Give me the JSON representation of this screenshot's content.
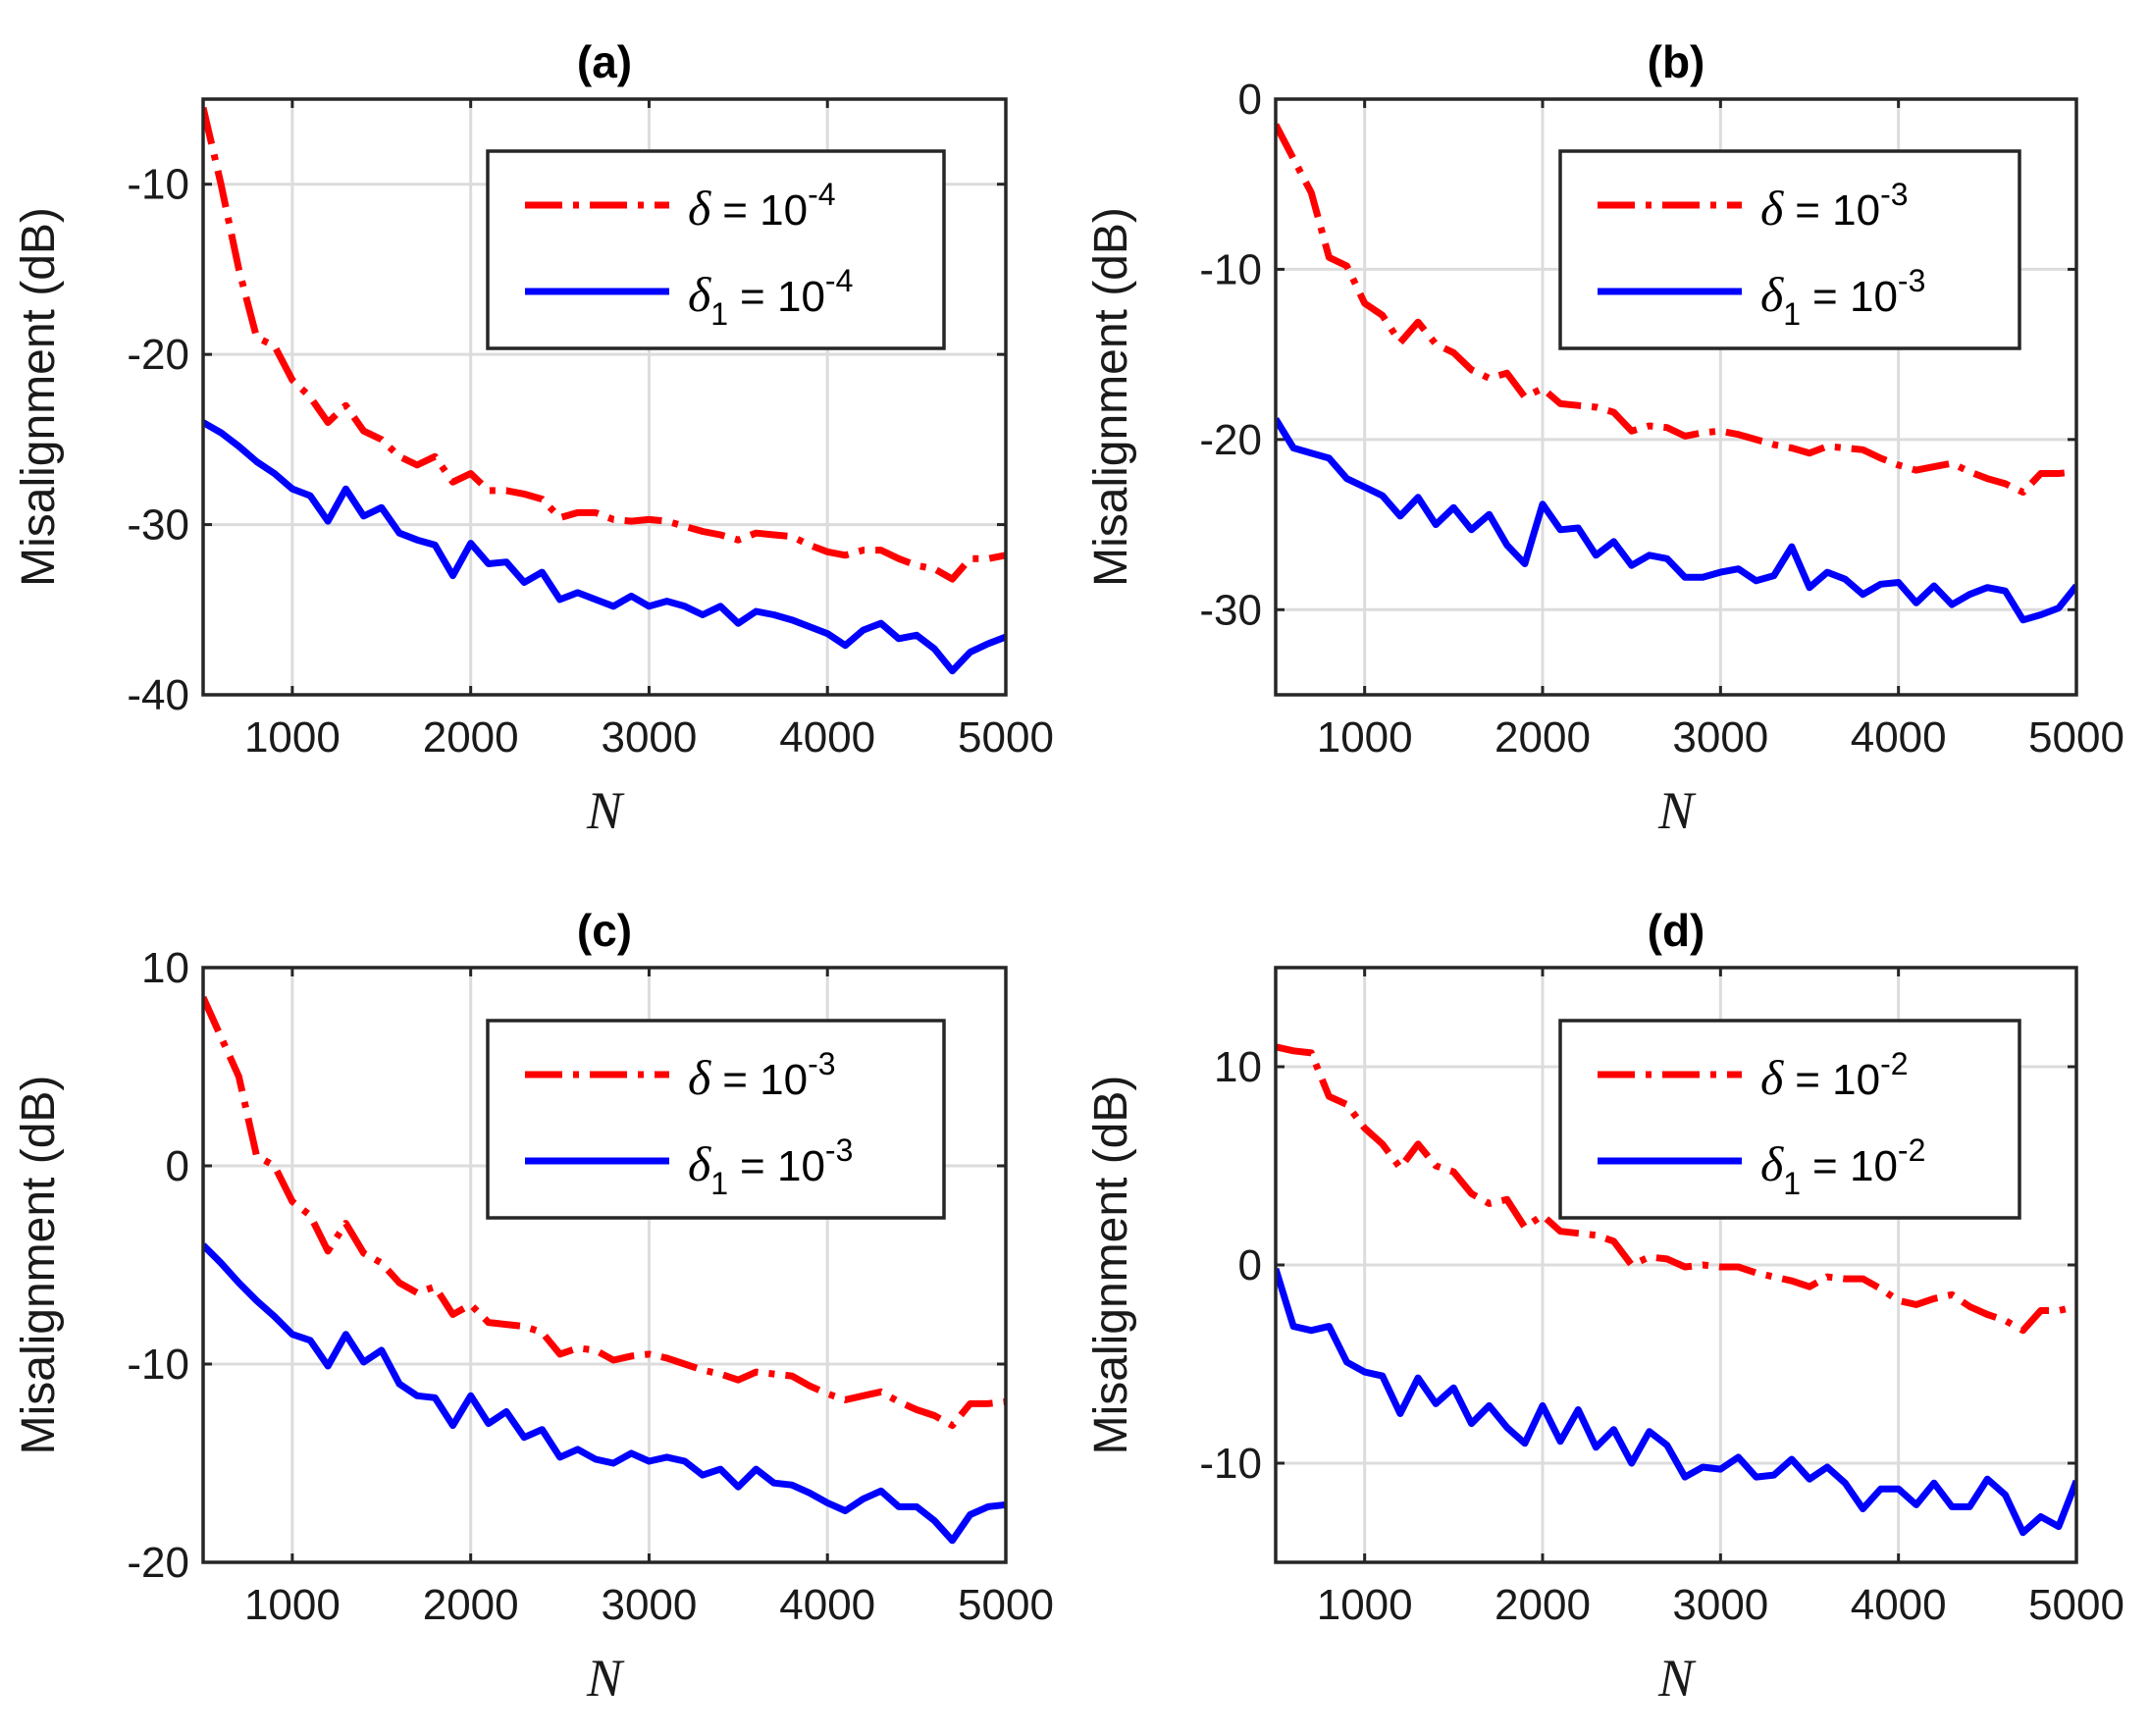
{
  "chart_data": [
    {
      "type": "line",
      "title": "(a)",
      "xlabel": "N",
      "ylabel": "Misalignment (dB)",
      "xlim": [
        500,
        5000
      ],
      "ylim": [
        -40,
        -5
      ],
      "xticks": [
        1000,
        2000,
        3000,
        4000,
        5000
      ],
      "xtick_labels": [
        "1000",
        "2000",
        "3000",
        "4000",
        "5000"
      ],
      "yticks": [
        -10,
        -20,
        -30,
        -40
      ],
      "ytick_labels": [
        "-10",
        "-20",
        "-30",
        "-40"
      ],
      "grid": true,
      "legend_position": "top-right",
      "x": [
        500,
        600,
        700,
        800,
        900,
        1000,
        1100,
        1200,
        1300,
        1400,
        1500,
        1600,
        1700,
        1800,
        1900,
        2000,
        2100,
        2200,
        2300,
        2400,
        2500,
        2600,
        2700,
        2800,
        2900,
        3000,
        3100,
        3200,
        3300,
        3400,
        3500,
        3600,
        3700,
        3800,
        3900,
        4000,
        4100,
        4200,
        4300,
        4400,
        4500,
        4600,
        4700,
        4800,
        4900,
        5000
      ],
      "series": [
        {
          "name": "δ = 10^-4",
          "legend_symbol": "δ",
          "legend_sub": "",
          "legend_rhs": "= 10",
          "legend_exp": "-4",
          "color": "#ff0000",
          "style": "dashdot",
          "values": [
            -5.5,
            -10,
            -15,
            -19,
            -19.5,
            -21.5,
            -22.5,
            -24,
            -23,
            -24.5,
            -25,
            -26,
            -26.5,
            -26,
            -27.5,
            -27,
            -28,
            -28,
            -28.2,
            -28.5,
            -29.6,
            -29.3,
            -29.3,
            -29.7,
            -29.8,
            -29.7,
            -29.8,
            -30.1,
            -30.4,
            -30.6,
            -30.9,
            -30.5,
            -30.6,
            -30.7,
            -31.2,
            -31.6,
            -31.8,
            -31.5,
            -31.5,
            -32,
            -32.4,
            -32.6,
            -33.2,
            -32,
            -32,
            -31.8
          ]
        },
        {
          "name": "δ1 = 10^-4",
          "legend_symbol": "δ",
          "legend_sub": "1",
          "legend_rhs": "= 10",
          "legend_exp": "-4",
          "color": "#0000ff",
          "style": "solid",
          "values": [
            -24,
            -24.6,
            -25.4,
            -26.3,
            -27,
            -27.9,
            -28.3,
            -29.8,
            -27.9,
            -29.5,
            -29,
            -30.5,
            -30.9,
            -31.2,
            -33,
            -31.1,
            -32.3,
            -32.2,
            -33.4,
            -32.8,
            -34.4,
            -34,
            -34.4,
            -34.8,
            -34.2,
            -34.8,
            -34.5,
            -34.8,
            -35.3,
            -34.8,
            -35.8,
            -35.1,
            -35.3,
            -35.6,
            -36,
            -36.4,
            -37.1,
            -36.2,
            -35.8,
            -36.7,
            -36.5,
            -37.3,
            -38.6,
            -37.5,
            -37,
            -36.6
          ]
        }
      ]
    },
    {
      "type": "line",
      "title": "(b)",
      "xlabel": "N",
      "ylabel": "Misalignment (dB)",
      "xlim": [
        500,
        5000
      ],
      "ylim": [
        -35,
        0
      ],
      "xticks": [
        1000,
        2000,
        3000,
        4000,
        5000
      ],
      "xtick_labels": [
        "1000",
        "2000",
        "3000",
        "4000",
        "5000"
      ],
      "yticks": [
        0,
        -10,
        -20,
        -30
      ],
      "ytick_labels": [
        "0",
        "-10",
        "-20",
        "-30"
      ],
      "grid": true,
      "legend_position": "top-right",
      "x": [
        500,
        600,
        700,
        800,
        900,
        1000,
        1100,
        1200,
        1300,
        1400,
        1500,
        1600,
        1700,
        1800,
        1900,
        2000,
        2100,
        2200,
        2300,
        2400,
        2500,
        2600,
        2700,
        2800,
        2900,
        3000,
        3100,
        3200,
        3300,
        3400,
        3500,
        3600,
        3700,
        3800,
        3900,
        4000,
        4100,
        4200,
        4300,
        4400,
        4500,
        4600,
        4700,
        4800,
        4900,
        5000
      ],
      "series": [
        {
          "name": "δ = 10^-3",
          "legend_symbol": "δ",
          "legend_sub": "",
          "legend_rhs": "= 10",
          "legend_exp": "-3",
          "color": "#ff0000",
          "style": "dashdot",
          "values": [
            -1.5,
            -3.5,
            -5.5,
            -9.3,
            -9.8,
            -12,
            -12.7,
            -14.3,
            -13.1,
            -14.4,
            -14.9,
            -15.9,
            -16.4,
            -16.1,
            -17.5,
            -17,
            -17.9,
            -18,
            -18.1,
            -18.4,
            -19.5,
            -19.2,
            -19.3,
            -19.8,
            -19.6,
            -19.5,
            -19.7,
            -20,
            -20.3,
            -20.5,
            -20.8,
            -20.4,
            -20.5,
            -20.6,
            -21.1,
            -21.5,
            -21.8,
            -21.6,
            -21.4,
            -21.9,
            -22.3,
            -22.6,
            -23.1,
            -22,
            -22,
            -21.9
          ]
        },
        {
          "name": "δ1 = 10^-3",
          "legend_symbol": "δ",
          "legend_sub": "1",
          "legend_rhs": "= 10",
          "legend_exp": "-3",
          "color": "#0000ff",
          "style": "solid",
          "values": [
            -18.8,
            -20.5,
            -20.8,
            -21.1,
            -22.3,
            -22.8,
            -23.3,
            -24.5,
            -23.4,
            -25,
            -24,
            -25.3,
            -24.4,
            -26.2,
            -27.3,
            -23.8,
            -25.3,
            -25.2,
            -26.8,
            -26,
            -27.4,
            -26.8,
            -27,
            -28.1,
            -28.1,
            -27.8,
            -27.6,
            -28.3,
            -28,
            -26.3,
            -28.7,
            -27.8,
            -28.2,
            -29.1,
            -28.5,
            -28.4,
            -29.6,
            -28.6,
            -29.7,
            -29.1,
            -28.7,
            -28.9,
            -30.6,
            -30.3,
            -29.9,
            -28.6
          ]
        }
      ]
    },
    {
      "type": "line",
      "title": "(c)",
      "xlabel": "N",
      "ylabel": "Misalignment (dB)",
      "xlim": [
        500,
        5000
      ],
      "ylim": [
        -20,
        10
      ],
      "xticks": [
        1000,
        2000,
        3000,
        4000,
        5000
      ],
      "xtick_labels": [
        "1000",
        "2000",
        "3000",
        "4000",
        "5000"
      ],
      "yticks": [
        10,
        0,
        -10,
        -20
      ],
      "ytick_labels": [
        "10",
        "0",
        "-10",
        "-20"
      ],
      "grid": true,
      "legend_position": "top-right",
      "x": [
        500,
        600,
        700,
        800,
        900,
        1000,
        1100,
        1200,
        1300,
        1400,
        1500,
        1600,
        1700,
        1800,
        1900,
        2000,
        2100,
        2200,
        2300,
        2400,
        2500,
        2600,
        2700,
        2800,
        2900,
        3000,
        3100,
        3200,
        3300,
        3400,
        3500,
        3600,
        3700,
        3800,
        3900,
        4000,
        4100,
        4200,
        4300,
        4400,
        4500,
        4600,
        4700,
        4800,
        4900,
        5000
      ],
      "series": [
        {
          "name": "δ = 10^-3",
          "legend_symbol": "δ",
          "legend_sub": "",
          "legend_rhs": "= 10",
          "legend_exp": "-3",
          "color": "#ff0000",
          "style": "dashdot",
          "values": [
            8.5,
            6.5,
            4.5,
            0.5,
            0,
            -1.8,
            -2.5,
            -4.3,
            -2.9,
            -4.4,
            -4.9,
            -5.9,
            -6.4,
            -6.1,
            -7.5,
            -7,
            -7.9,
            -8,
            -8.1,
            -8.4,
            -9.5,
            -9.2,
            -9.3,
            -9.8,
            -9.6,
            -9.5,
            -9.7,
            -10,
            -10.3,
            -10.5,
            -10.8,
            -10.4,
            -10.5,
            -10.6,
            -11.1,
            -11.5,
            -11.8,
            -11.6,
            -11.4,
            -11.9,
            -12.3,
            -12.6,
            -13.1,
            -12,
            -12,
            -11.9
          ]
        },
        {
          "name": "δ1 = 10^-3",
          "legend_symbol": "δ",
          "legend_sub": "1",
          "legend_rhs": "= 10",
          "legend_exp": "-3",
          "color": "#0000ff",
          "style": "solid",
          "values": [
            -4,
            -4.9,
            -5.9,
            -6.8,
            -7.6,
            -8.5,
            -8.8,
            -10.1,
            -8.5,
            -9.9,
            -9.3,
            -11,
            -11.6,
            -11.7,
            -13.1,
            -11.6,
            -13,
            -12.4,
            -13.7,
            -13.3,
            -14.7,
            -14.3,
            -14.8,
            -15,
            -14.5,
            -14.9,
            -14.7,
            -14.9,
            -15.6,
            -15.3,
            -16.2,
            -15.3,
            -16,
            -16.1,
            -16.5,
            -17,
            -17.4,
            -16.8,
            -16.4,
            -17.2,
            -17.2,
            -17.9,
            -18.9,
            -17.6,
            -17.2,
            -17.1
          ]
        }
      ]
    },
    {
      "type": "line",
      "title": "(d)",
      "xlabel": "N",
      "ylabel": "Misalignment (dB)",
      "xlim": [
        500,
        5000
      ],
      "ylim": [
        -15,
        15
      ],
      "xticks": [
        1000,
        2000,
        3000,
        4000,
        5000
      ],
      "xtick_labels": [
        "1000",
        "2000",
        "3000",
        "4000",
        "5000"
      ],
      "yticks": [
        10,
        0,
        -10
      ],
      "ytick_labels": [
        "10",
        "0",
        "-10"
      ],
      "grid": true,
      "legend_position": "top-right",
      "x": [
        500,
        600,
        700,
        800,
        900,
        1000,
        1100,
        1200,
        1300,
        1400,
        1500,
        1600,
        1700,
        1800,
        1900,
        2000,
        2100,
        2200,
        2300,
        2400,
        2500,
        2600,
        2700,
        2800,
        2900,
        3000,
        3100,
        3200,
        3300,
        3400,
        3500,
        3600,
        3700,
        3800,
        3900,
        4000,
        4100,
        4200,
        4300,
        4400,
        4500,
        4600,
        4700,
        4800,
        4900,
        5000
      ],
      "series": [
        {
          "name": "δ = 10^-2",
          "legend_symbol": "δ",
          "legend_sub": "",
          "legend_rhs": "= 10",
          "legend_exp": "-2",
          "color": "#ff0000",
          "style": "dashdot",
          "values": [
            11,
            10.8,
            10.7,
            8.5,
            8.1,
            6.9,
            6.1,
            4.9,
            6.1,
            5,
            4.7,
            3.6,
            3.1,
            3.3,
            1.9,
            2.5,
            1.7,
            1.6,
            1.5,
            1.2,
            0,
            0.4,
            0.3,
            -0.1,
            0,
            -0.1,
            -0.1,
            -0.4,
            -0.6,
            -0.8,
            -1.1,
            -0.6,
            -0.7,
            -0.7,
            -1.2,
            -1.8,
            -2,
            -1.7,
            -1.5,
            -2.1,
            -2.5,
            -2.8,
            -3.3,
            -2.3,
            -2.3,
            -2.1
          ]
        },
        {
          "name": "δ1 = 10^-2",
          "legend_symbol": "δ",
          "legend_sub": "1",
          "legend_rhs": "= 10",
          "legend_exp": "-2",
          "color": "#0000ff",
          "style": "solid",
          "values": [
            -0.2,
            -3.1,
            -3.3,
            -3.1,
            -4.9,
            -5.4,
            -5.6,
            -7.5,
            -5.7,
            -7,
            -6.2,
            -8,
            -7.1,
            -8.2,
            -9,
            -7.1,
            -8.9,
            -7.3,
            -9.2,
            -8.3,
            -10,
            -8.4,
            -9.1,
            -10.7,
            -10.2,
            -10.3,
            -9.7,
            -10.7,
            -10.6,
            -9.8,
            -10.8,
            -10.2,
            -11,
            -12.3,
            -11.3,
            -11.3,
            -12.1,
            -11,
            -12.2,
            -12.2,
            -10.8,
            -11.6,
            -13.5,
            -12.7,
            -13.2,
            -10.9
          ]
        }
      ]
    }
  ]
}
